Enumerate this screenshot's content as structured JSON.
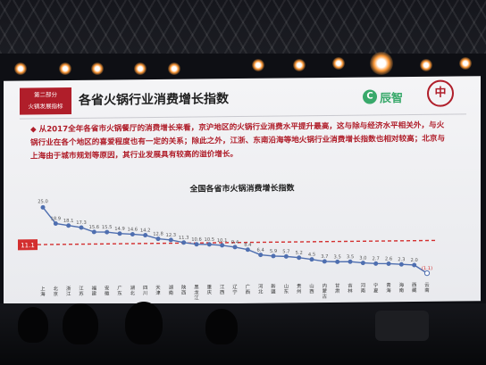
{
  "section_label": "第二部分",
  "section_sublabel": "火锅发展指标",
  "slide_title": "各省火锅行业消费增长指数",
  "logo_chenzhi": "辰智",
  "bullet_text": "从2017全年各省市火锅餐厅的消费增长来看，京沪地区的火锅行业消费水平提升最高，这与除与经济水平相关外，与火锅行业在各个地区的喜爱程度也有一定的关系；除此之外，江浙、东南沿海等地火锅行业消费增长指数也相对较高；北京与上海由于城市规划等原因，其行业发展具有较高的溢价增长。",
  "colors": {
    "accent_red": "#b01e2a",
    "line_blue": "#4f6fb0",
    "avg_red": "#d32f2f",
    "logo_green": "#39a96b"
  },
  "chart_data": {
    "type": "line",
    "title": "全国各省市火锅消费增长指数",
    "categories": [
      "上海",
      "北京",
      "浙江",
      "江苏",
      "福建",
      "安徽",
      "广东",
      "湖北",
      "四川",
      "天津",
      "湖南",
      "陕西",
      "黑龙江",
      "重庆",
      "江西",
      "辽宁",
      "广西",
      "河北",
      "新疆",
      "山东",
      "贵州",
      "山西",
      "内蒙古",
      "甘肃",
      "吉林",
      "河南",
      "宁夏",
      "青海",
      "海南",
      "西藏",
      "云南"
    ],
    "values": [
      25.0,
      18.9,
      18.1,
      17.3,
      15.6,
      15.5,
      14.9,
      14.6,
      14.2,
      12.8,
      12.3,
      11.3,
      10.6,
      10.5,
      10.1,
      9.4,
      8.4,
      6.4,
      5.9,
      5.7,
      5.2,
      4.5,
      3.7,
      3.5,
      3.5,
      3.0,
      2.7,
      2.6,
      2.3,
      2.0,
      -1.1
    ],
    "value_labels": [
      "25.0",
      "18.9",
      "18.1",
      "17.3",
      "15.6",
      "15.5",
      "14.9",
      "14.6",
      "14.2",
      "12.8",
      "12.3",
      "11.3",
      "10.6",
      "10.5",
      "10.1",
      "9.4",
      "8.4",
      "6.4",
      "5.9",
      "5.7",
      "5.2",
      "4.5",
      "3.7",
      "3.5",
      "3.5",
      "3.0",
      "2.7",
      "2.6",
      "2.3",
      "2.0",
      "(1.1)"
    ],
    "average": 11.1,
    "average_label": "11.1",
    "ylim": [
      -3,
      27
    ],
    "grid": false,
    "legend": "none"
  }
}
